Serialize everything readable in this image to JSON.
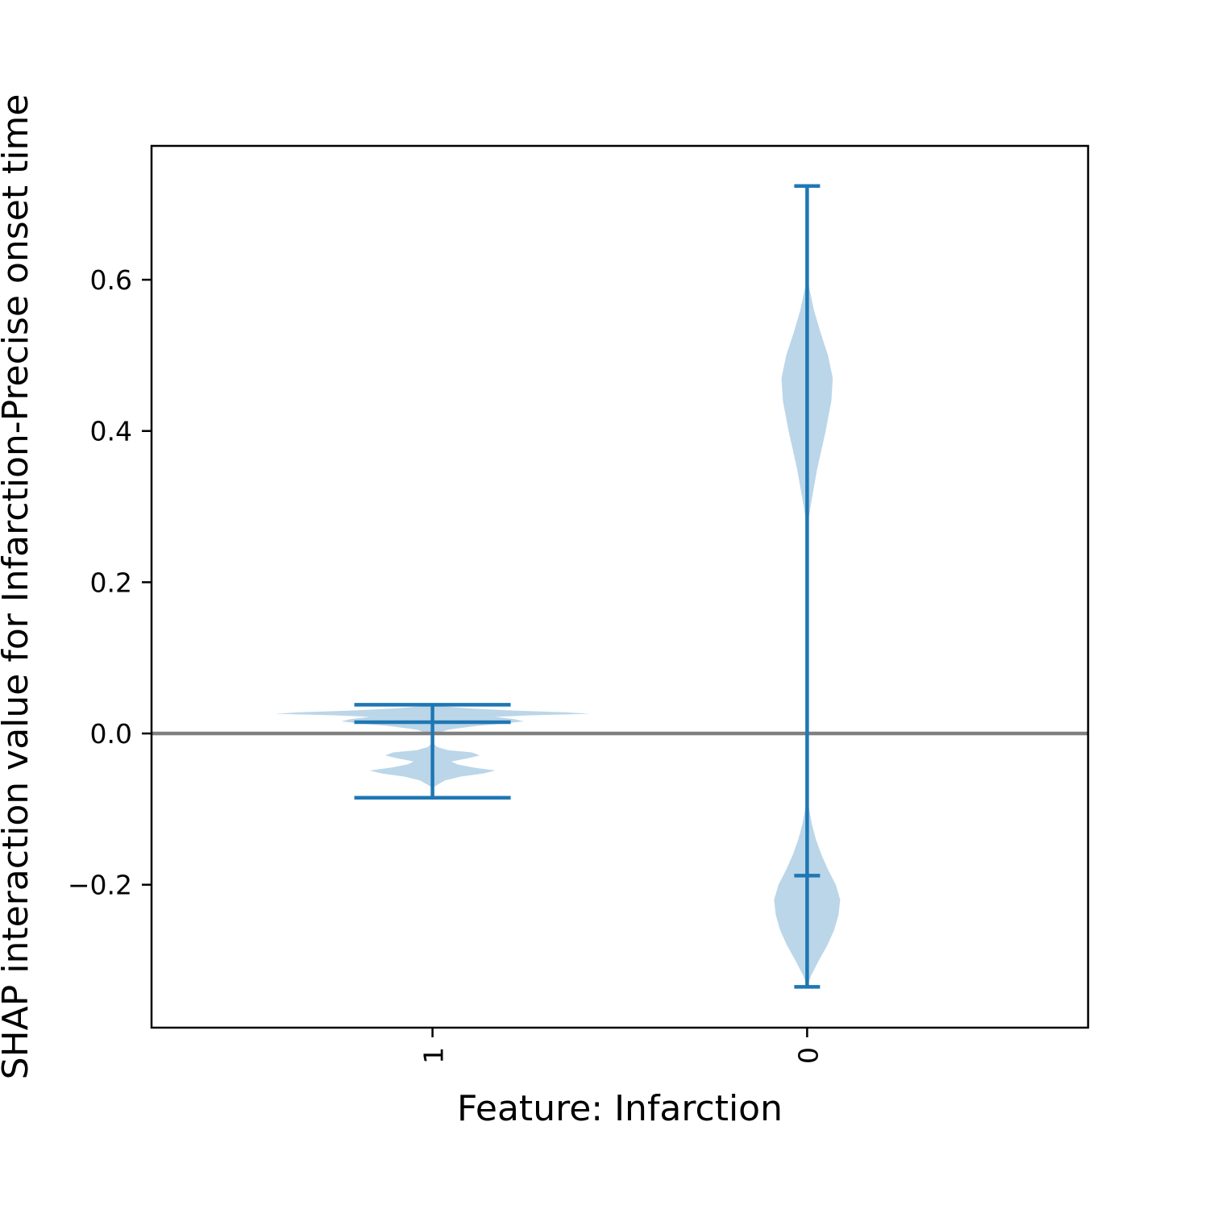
{
  "chart_data": {
    "type": "violin",
    "xlabel": "Feature: Infarction",
    "ylabel": "SHAP interaction value for Infarction-Precise onset time",
    "ylim": [
      -0.389,
      0.777
    ],
    "yticks": [
      -0.2,
      0.0,
      0.2,
      0.4,
      0.6
    ],
    "ytick_labels": [
      "−0.2",
      "0.0",
      "0.2",
      "0.4",
      "0.6"
    ],
    "categories": [
      "1",
      "0"
    ],
    "reference_line": 0.0,
    "grid": false,
    "colors": {
      "body": "#1f77b4",
      "body_opacity": 0.3,
      "lines": "#1f77b4",
      "reference": "#808080"
    },
    "violins": [
      {
        "category": "1",
        "min": -0.085,
        "max": 0.038,
        "median": 0.015,
        "half_width": 0.42,
        "density": [
          [
            -0.072,
            0.0
          ],
          [
            -0.068,
            0.03
          ],
          [
            -0.062,
            0.08
          ],
          [
            -0.057,
            0.18
          ],
          [
            -0.053,
            0.32
          ],
          [
            -0.049,
            0.4
          ],
          [
            -0.045,
            0.26
          ],
          [
            -0.041,
            0.16
          ],
          [
            -0.037,
            0.12
          ],
          [
            -0.033,
            0.22
          ],
          [
            -0.029,
            0.3
          ],
          [
            -0.025,
            0.25
          ],
          [
            -0.022,
            0.1
          ],
          [
            -0.018,
            0.03
          ],
          [
            -0.012,
            0.0
          ],
          [
            -0.002,
            0.0
          ],
          [
            0.005,
            0.1
          ],
          [
            0.01,
            0.28
          ],
          [
            0.013,
            0.45
          ],
          [
            0.016,
            0.58
          ],
          [
            0.019,
            0.52
          ],
          [
            0.022,
            0.4
          ],
          [
            0.024,
            0.62
          ],
          [
            0.026,
            1.0
          ],
          [
            0.028,
            0.85
          ],
          [
            0.03,
            0.55
          ],
          [
            0.033,
            0.25
          ],
          [
            0.036,
            0.06
          ],
          [
            0.038,
            0.0
          ]
        ]
      },
      {
        "category": "0",
        "min": -0.335,
        "max": 0.724,
        "median": -0.188,
        "half_width": 0.09,
        "density": [
          [
            -0.335,
            0.0
          ],
          [
            -0.32,
            0.12
          ],
          [
            -0.3,
            0.35
          ],
          [
            -0.28,
            0.6
          ],
          [
            -0.26,
            0.8
          ],
          [
            -0.24,
            0.93
          ],
          [
            -0.22,
            0.98
          ],
          [
            -0.2,
            0.85
          ],
          [
            -0.18,
            0.62
          ],
          [
            -0.16,
            0.42
          ],
          [
            -0.14,
            0.26
          ],
          [
            -0.12,
            0.14
          ],
          [
            -0.1,
            0.06
          ],
          [
            -0.08,
            0.0
          ],
          [
            0.27,
            0.0
          ],
          [
            0.3,
            0.1
          ],
          [
            0.35,
            0.3
          ],
          [
            0.4,
            0.55
          ],
          [
            0.44,
            0.72
          ],
          [
            0.47,
            0.76
          ],
          [
            0.5,
            0.62
          ],
          [
            0.53,
            0.4
          ],
          [
            0.56,
            0.2
          ],
          [
            0.59,
            0.06
          ],
          [
            0.61,
            0.0
          ]
        ]
      }
    ]
  }
}
